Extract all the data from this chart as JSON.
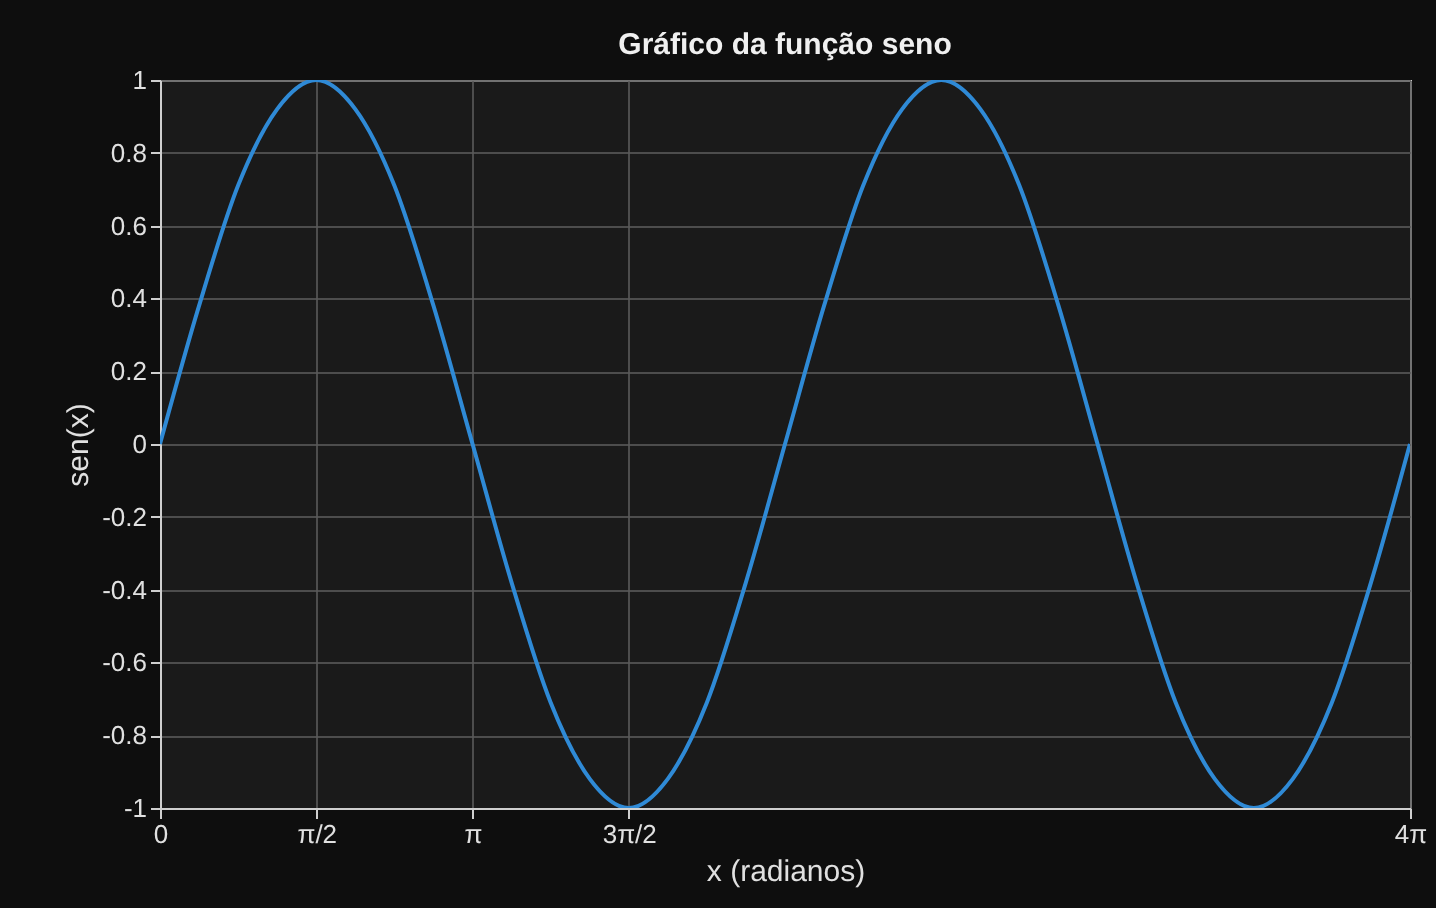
{
  "chart_data": {
    "type": "line",
    "title": "Gráfico da função seno",
    "xlabel": "x (radianos)",
    "ylabel": "sen(x)",
    "x": [
      0,
      0.393,
      0.785,
      1.178,
      1.571,
      1.963,
      2.356,
      2.749,
      3.142,
      3.534,
      3.927,
      4.32,
      4.712,
      5.105,
      5.498,
      5.89,
      6.283,
      6.676,
      7.069,
      7.461,
      7.854,
      8.247,
      8.639,
      9.032,
      9.425,
      9.817,
      10.21,
      10.603,
      10.996,
      11.388,
      11.781,
      12.174,
      12.566
    ],
    "series": [
      {
        "color": "#2f8ad6",
        "values": [
          0,
          0.38,
          0.71,
          0.92,
          1,
          0.92,
          0.71,
          0.38,
          0,
          -0.38,
          -0.71,
          -0.92,
          -1,
          -0.92,
          -0.71,
          -0.38,
          0,
          0.38,
          0.71,
          0.92,
          1,
          0.92,
          0.71,
          0.38,
          0,
          -0.38,
          -0.71,
          -0.92,
          -1,
          -0.92,
          -0.71,
          -0.38,
          0
        ]
      }
    ],
    "xlim": [
      0,
      12.566
    ],
    "ylim": [
      -1,
      1
    ],
    "xticks": [
      0,
      {
        "value": 1.571,
        "label": "π/2"
      },
      {
        "value": 3.142,
        "label": "π"
      },
      {
        "value": 4.712,
        "label": "3π/2"
      },
      {
        "value": 12.566,
        "label": "4π"
      }
    ],
    "yticks": [
      -1,
      -0.8,
      -0.6,
      -0.4,
      -0.2,
      0,
      0.2,
      0.4,
      0.6,
      0.8,
      1
    ],
    "grid": true,
    "marker": "none",
    "line_style": "solid"
  }
}
